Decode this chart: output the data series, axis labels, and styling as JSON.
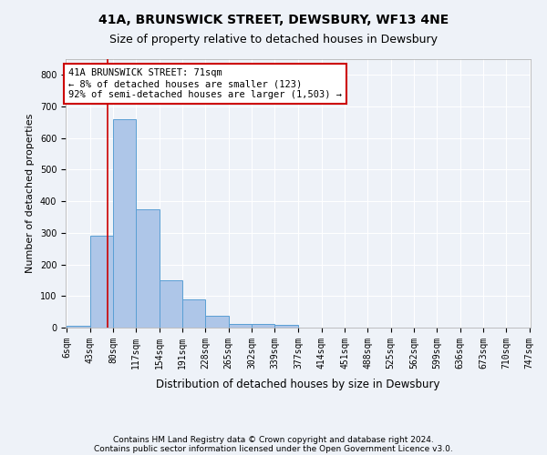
{
  "title": "41A, BRUNSWICK STREET, DEWSBURY, WF13 4NE",
  "subtitle": "Size of property relative to detached houses in Dewsbury",
  "xlabel": "Distribution of detached houses by size in Dewsbury",
  "ylabel": "Number of detached properties",
  "footnote1": "Contains HM Land Registry data © Crown copyright and database right 2024.",
  "footnote2": "Contains public sector information licensed under the Open Government Licence v3.0.",
  "bin_edges": [
    6,
    43,
    80,
    117,
    154,
    191,
    228,
    265,
    302,
    339,
    377,
    414,
    451,
    488,
    525,
    562,
    599,
    636,
    673,
    710,
    747
  ],
  "bin_labels": [
    "6sqm",
    "43sqm",
    "80sqm",
    "117sqm",
    "154sqm",
    "191sqm",
    "228sqm",
    "265sqm",
    "302sqm",
    "339sqm",
    "377sqm",
    "414sqm",
    "451sqm",
    "488sqm",
    "525sqm",
    "562sqm",
    "599sqm",
    "636sqm",
    "673sqm",
    "710sqm",
    "747sqm"
  ],
  "bar_heights": [
    6,
    290,
    660,
    375,
    150,
    88,
    37,
    12,
    12,
    10,
    0,
    0,
    0,
    0,
    0,
    0,
    0,
    0,
    0,
    0
  ],
  "bar_color": "#aec6e8",
  "bar_edge_color": "#5a9fd4",
  "property_size": 71,
  "red_line_color": "#cc0000",
  "annotation_text": "41A BRUNSWICK STREET: 71sqm\n← 8% of detached houses are smaller (123)\n92% of semi-detached houses are larger (1,503) →",
  "annotation_box_color": "#ffffff",
  "annotation_box_edge_color": "#cc0000",
  "ylim": [
    0,
    850
  ],
  "background_color": "#eef2f8",
  "plot_background_color": "#eef2f8",
  "grid_color": "#ffffff",
  "title_fontsize": 10,
  "subtitle_fontsize": 9,
  "axis_label_fontsize": 8.5,
  "tick_fontsize": 7,
  "annotation_fontsize": 7.5,
  "footnote_fontsize": 6.5,
  "ylabel_fontsize": 8
}
